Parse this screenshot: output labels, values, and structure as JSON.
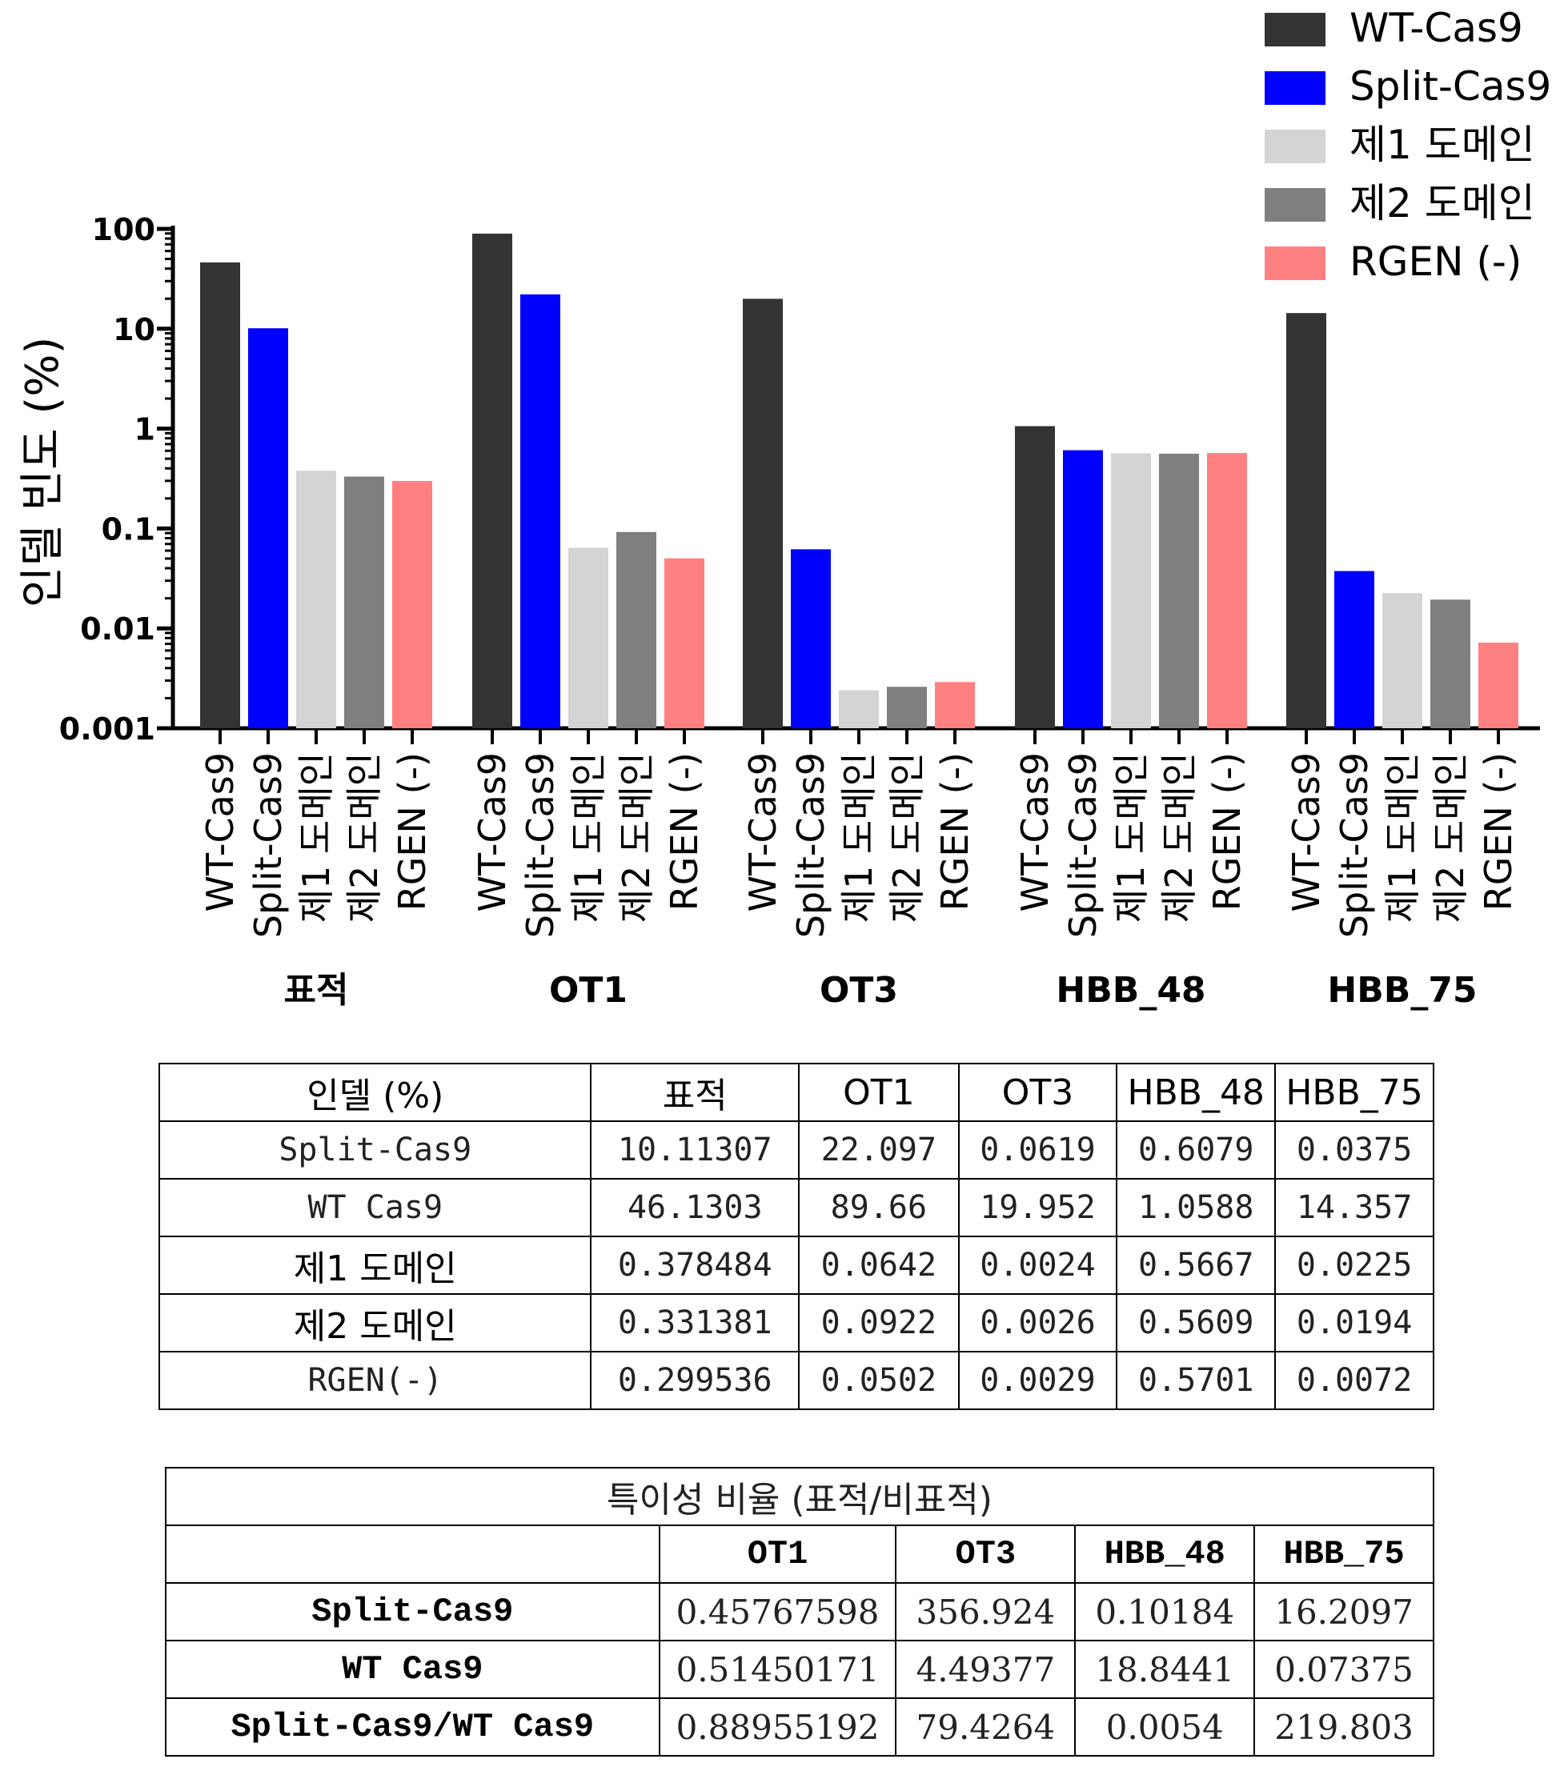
{
  "chart_data": {
    "type": "bar",
    "ylabel": "인델 빈도 (%)",
    "yscale": "log",
    "ylim": [
      0.001,
      100
    ],
    "yticks": [
      "0.001",
      "0.01",
      "0.1",
      "1",
      "10",
      "100"
    ],
    "groups": [
      "표적",
      "OT1",
      "OT3",
      "HBB_48",
      "HBB_75"
    ],
    "series": [
      {
        "name": "WT-Cas9",
        "color": "#333333",
        "values": [
          46.1303,
          89.66,
          19.952,
          1.0588,
          14.357
        ]
      },
      {
        "name": "Split-Cas9",
        "color": "#0000ff",
        "values": [
          10.11307,
          22.097,
          0.0619,
          0.6079,
          0.0375
        ]
      },
      {
        "name": "제1 도메인",
        "color": "#d4d4d4",
        "values": [
          0.378484,
          0.0642,
          0.0024,
          0.5667,
          0.0225
        ]
      },
      {
        "name": "제2 도메인",
        "color": "#7f7f7f",
        "values": [
          0.331381,
          0.0922,
          0.0026,
          0.5609,
          0.0194
        ]
      },
      {
        "name": "RGEN (-)",
        "color": "#ff8080",
        "values": [
          0.299536,
          0.0502,
          0.0029,
          0.5701,
          0.0072
        ]
      }
    ],
    "legend_position": "top-right"
  },
  "indel_table": {
    "header": [
      "인델 (%)",
      "표적",
      "OT1",
      "OT3",
      "HBB_48",
      "HBB_75"
    ],
    "rows": [
      [
        "Split-Cas9",
        "10.11307",
        "22.097",
        "0.0619",
        "0.6079",
        "0.0375"
      ],
      [
        "WT Cas9",
        "46.1303",
        "89.66",
        "19.952",
        "1.0588",
        "14.357"
      ],
      [
        "제1 도메인",
        "0.378484",
        "0.0642",
        "0.0024",
        "0.5667",
        "0.0225"
      ],
      [
        "제2 도메인",
        "0.331381",
        "0.0922",
        "0.0026",
        "0.5609",
        "0.0194"
      ],
      [
        "RGEN(-)",
        "0.299536",
        "0.0502",
        "0.0029",
        "0.5701",
        "0.0072"
      ]
    ]
  },
  "specificity_table": {
    "title": "특이성 비율 (표적/비표적)",
    "header": [
      "",
      "OT1",
      "OT3",
      "HBB_48",
      "HBB_75"
    ],
    "rows": [
      [
        "Split-Cas9",
        "0.45767598",
        "356.924",
        "0.10184",
        "16.2097"
      ],
      [
        "WT Cas9",
        "0.51450171",
        "4.49377",
        "18.8441",
        "0.07375"
      ],
      [
        "Split-Cas9/WT Cas9",
        "0.88955192",
        "79.4264",
        "0.0054",
        "219.803"
      ]
    ]
  }
}
